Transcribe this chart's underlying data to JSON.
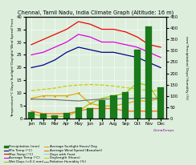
{
  "title": "Chennai, Tamil Nadu, India Climate Graph (Altitude: 16 m)",
  "months": [
    "Jan",
    "Feb",
    "Mar",
    "Apr",
    "May",
    "Jun",
    "Jul",
    "Aug",
    "Sep",
    "Oct",
    "Nov",
    "Dec"
  ],
  "precipitation": [
    29,
    22,
    14,
    25,
    52,
    48,
    83,
    104,
    118,
    305,
    407,
    139
  ],
  "max_temp": [
    29,
    31,
    33,
    35,
    38,
    37,
    35,
    35,
    34,
    32,
    29,
    28
  ],
  "min_temp": [
    20,
    21,
    23,
    26,
    28,
    27,
    26,
    26,
    25,
    24,
    22,
    20
  ],
  "avg_temp": [
    25,
    26,
    28,
    30,
    33,
    32,
    30,
    30,
    29,
    28,
    26,
    24
  ],
  "wet_days": [
    2,
    1,
    1,
    1,
    3,
    6,
    8,
    9,
    10,
    14,
    13,
    6
  ],
  "sunlight_hours": [
    8,
    9,
    9,
    9,
    10,
    6,
    5,
    5,
    6,
    7,
    7,
    8
  ],
  "wind_speed": [
    3,
    2,
    2,
    2,
    3,
    4,
    4,
    4,
    3,
    3,
    3,
    3
  ],
  "daylight_hours": [
    11.0,
    11.5,
    12.0,
    12.8,
    13.2,
    13.4,
    13.2,
    12.8,
    12.2,
    11.6,
    11.1,
    10.9
  ],
  "relative_humidity": [
    7.7,
    7.6,
    7.5,
    7.2,
    7.0,
    7.4,
    7.7,
    7.8,
    7.9,
    8.0,
    8.1,
    7.9
  ],
  "days_with_frost": [
    0,
    0,
    0,
    0,
    0,
    0,
    0,
    0,
    0,
    0,
    0,
    0
  ],
  "ylim_left": [
    0,
    40
  ],
  "ylim_right": [
    0,
    450
  ],
  "yticks_left": [
    0,
    5,
    10,
    15,
    20,
    25,
    30,
    35,
    40
  ],
  "yticks_right": [
    0,
    50,
    100,
    150,
    200,
    250,
    300,
    350,
    400,
    450
  ],
  "bar_color": "#1a7a1a",
  "bar_edge": "#0a5a0a",
  "max_temp_color": "#ee0000",
  "min_temp_color": "#00008b",
  "avg_temp_color": "#dd00dd",
  "wet_days_color": "#99cc00",
  "sunlight_color": "#ddaa00",
  "wind_color": "#ff6600",
  "daylight_color": "#cccc00",
  "humidity_color": "#777777",
  "frost_color": "#88ccff",
  "bg_color": "#ddeedd",
  "plot_bg": "#ddeedd",
  "grid_color": "#ffffff",
  "title_fontsize": 4.8,
  "tick_fontsize": 3.8,
  "legend_fontsize": 3.0,
  "ylabel_fontsize": 3.0,
  "line_width": 0.9,
  "climatemps_color": "#880088"
}
